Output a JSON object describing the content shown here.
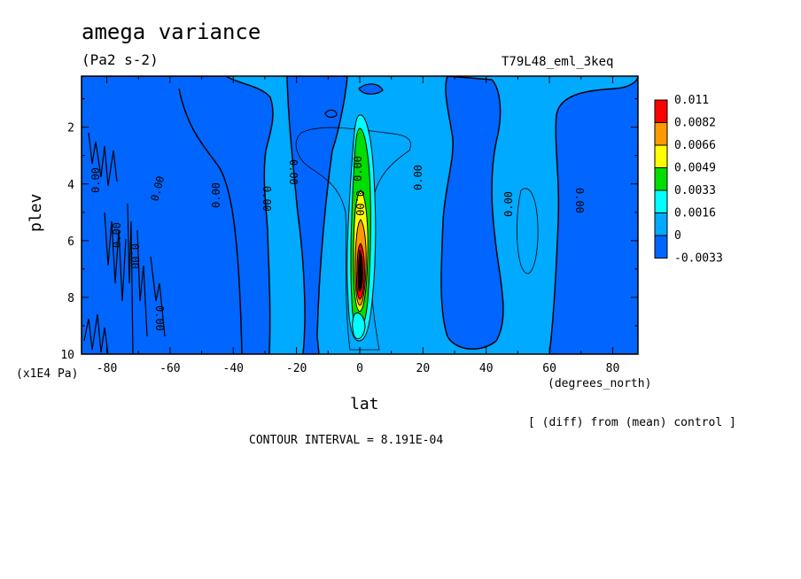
{
  "chart_data": {
    "type": "heatmap",
    "title": "amega variance",
    "units": "(Pa2 s-2)",
    "run_label": "T79L48_eml_3keq",
    "xlabel": "lat",
    "x_units": "(degrees_north)",
    "ylabel": "plev",
    "y_units": "(x1E4 Pa)",
    "xlim": [
      -88,
      88
    ],
    "ylim": [
      10,
      0.2
    ],
    "x_ticks": [
      -80,
      -60,
      -40,
      -20,
      0,
      20,
      40,
      60,
      80
    ],
    "x_tick_labels": [
      "-80",
      "-60",
      "-40",
      "-20",
      "0",
      "20",
      "40",
      "60",
      "80"
    ],
    "y_ticks": [
      2,
      4,
      6,
      8,
      10
    ],
    "y_tick_labels": [
      "2",
      "4",
      "6",
      "8",
      "10"
    ],
    "contour_label_text": "0.00",
    "colorbar": {
      "labels": [
        "0.011",
        "0.0082",
        "0.0066",
        "0.0049",
        "0.0033",
        "0.0016",
        "0",
        "-0.0033"
      ],
      "colors": [
        "#ff0000",
        "#ff9900",
        "#ffff00",
        "#00dd00",
        "#00ffff",
        "#00aaff",
        "#0066ff"
      ],
      "background": "#00aaff",
      "negative_color": "#0066ff"
    },
    "note": "[ (diff) from (mean) control ]",
    "contour_interval": "CONTOUR INTERVAL = 8.191E-04"
  }
}
